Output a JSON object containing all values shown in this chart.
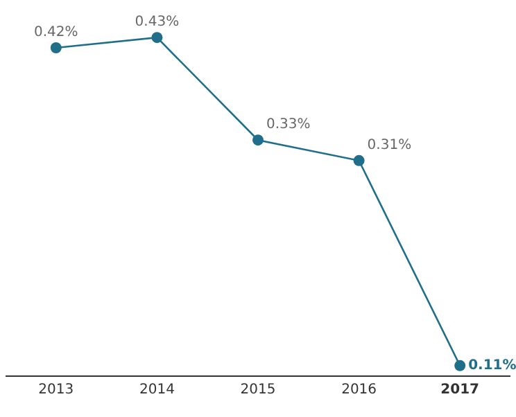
{
  "chart_data": {
    "type": "line",
    "categories": [
      "2013",
      "2014",
      "2015",
      "2016",
      "2017"
    ],
    "series": [
      {
        "color": "#1f6f8b",
        "values": [
          0.42,
          0.43,
          0.33,
          0.31,
          0.11
        ],
        "value_labels": [
          "0.42%",
          "0.43%",
          "0.33%",
          "0.31%",
          "0.11%"
        ]
      }
    ],
    "marker": "circle",
    "line_style": "solid",
    "grid": false
  }
}
